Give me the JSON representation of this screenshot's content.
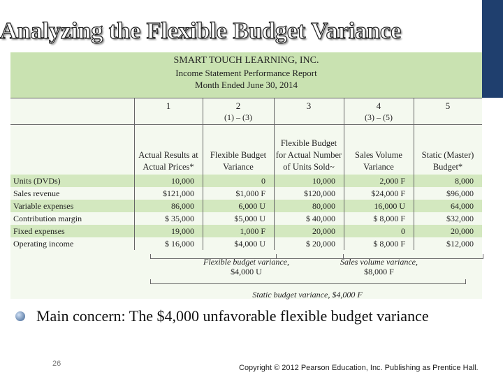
{
  "title": "Analyzing the Flexible Budget Variance",
  "report": {
    "company": "SMART TOUCH LEARNING, INC.",
    "name": "Income Statement Performance Report",
    "period": "Month Ended June 30, 2014",
    "column_numbers": [
      "1",
      "2",
      "3",
      "4",
      "5"
    ],
    "column_formulas": [
      null,
      "(1) – (3)",
      null,
      "(3) – (5)",
      null
    ],
    "column_headers": [
      "Actual Results at Actual Prices*",
      "Flexible Budget Variance",
      "Flexible Budget for Actual Number of Units Sold~",
      "Sales Volume Variance",
      "Static (Master) Budget*"
    ],
    "rows": [
      {
        "label": "Units (DVDs)",
        "cells": [
          "10,000",
          "0",
          "10,000",
          "2,000 F",
          "8,000"
        ]
      },
      {
        "label": "Sales revenue",
        "cells": [
          "$121,000",
          "$1,000 F",
          "$120,000",
          "$24,000 F",
          "$96,000"
        ]
      },
      {
        "label": "Variable expenses",
        "cells": [
          "86,000",
          "6,000 U",
          "80,000",
          "16,000 U",
          "64,000"
        ]
      },
      {
        "label": "Contribution margin",
        "cells": [
          "$ 35,000",
          "$5,000 U",
          "$ 40,000",
          "$ 8,000 F",
          "$32,000"
        ]
      },
      {
        "label": "Fixed expenses",
        "cells": [
          "19,000",
          "1,000 F",
          "20,000",
          "0",
          "20,000"
        ]
      },
      {
        "label": "Operating income",
        "cells": [
          "$ 16,000",
          "$4,000 U",
          "$ 20,000",
          "$ 8,000 F",
          "$12,000"
        ]
      }
    ],
    "flexible_variance": {
      "label": "Flexible budget variance,",
      "amount": "$4,000 U"
    },
    "sales_volume_variance": {
      "label": "Sales volume variance,",
      "amount": "$8,000 F"
    },
    "static_variance": "Static budget variance, $4,000 F"
  },
  "bullet": "Main concern: The $4,000 unfavorable flexible budget variance",
  "page_number": "26",
  "copyright": "Copyright © 2012 Pearson Education, Inc. Publishing as Prentice Hall."
}
